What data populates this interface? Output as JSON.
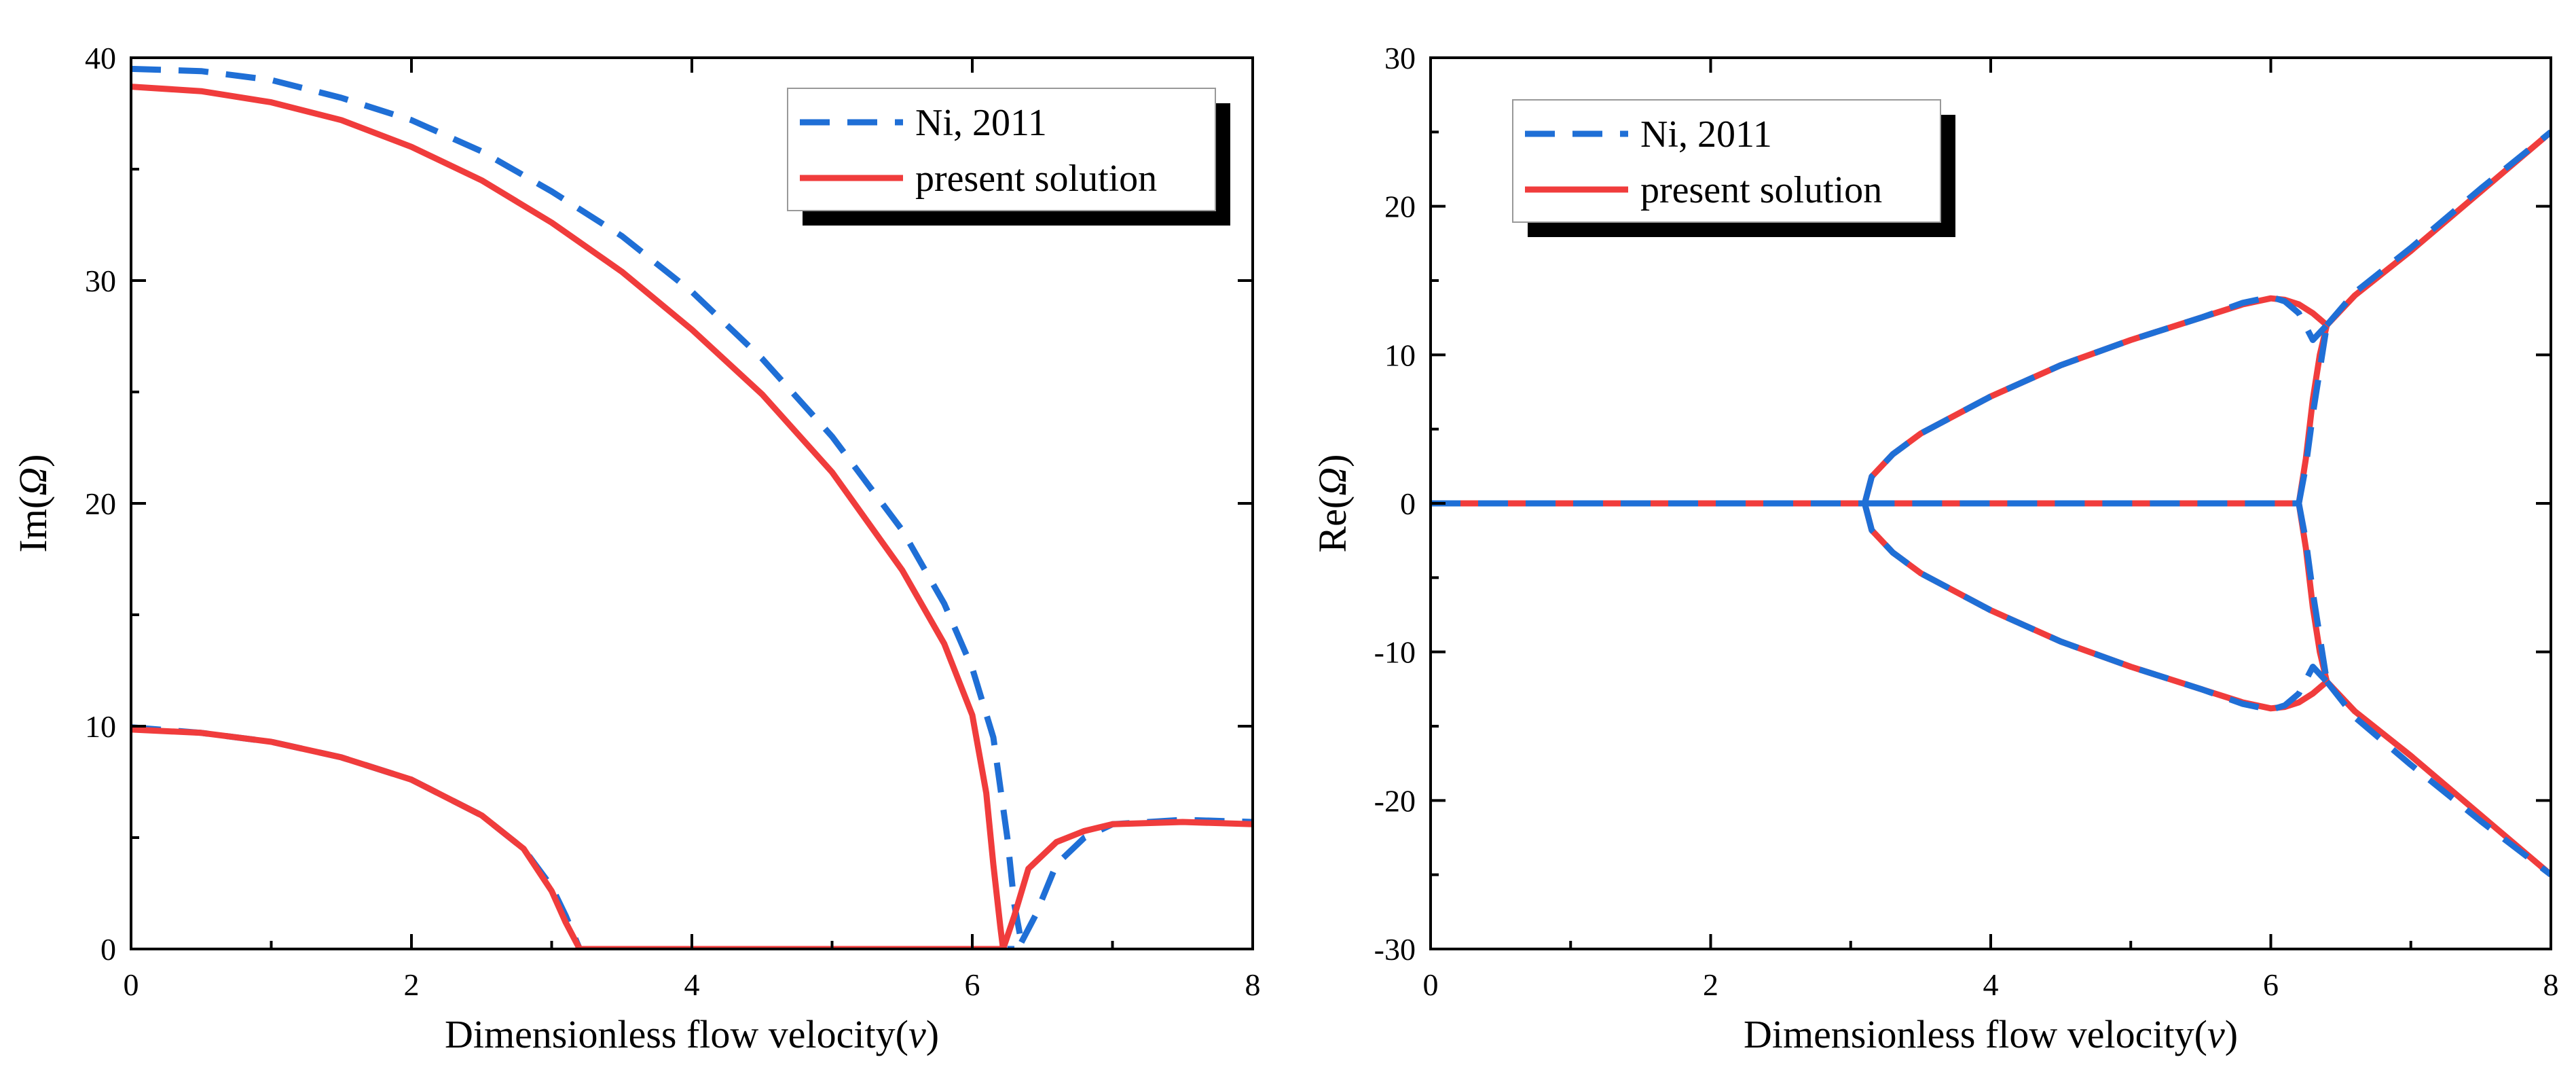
{
  "chart_data": [
    {
      "type": "line",
      "xlabel_prefix": "Dimensionless flow velocity(",
      "xlabel_var": "v",
      "xlabel_suffix": ")",
      "ylabel_prefix": "Im(",
      "ylabel_var": "Ω",
      "ylabel_suffix": ")",
      "xlim": [
        0,
        8
      ],
      "ylim": [
        0,
        40
      ],
      "xticks": [
        0,
        2,
        4,
        6,
        8
      ],
      "yticks": [
        0,
        10,
        20,
        30,
        40
      ],
      "xtick_labels": [
        "0",
        "2",
        "4",
        "6",
        "8"
      ],
      "ytick_labels": [
        "0",
        "10",
        "20",
        "30",
        "40"
      ],
      "legend_position": "top-right",
      "legend": [
        "Ni, 2011",
        "present solution"
      ],
      "series": [
        {
          "name": "Ni, 2011",
          "style": "dashed",
          "color": "#1f6fd6",
          "segments": [
            [
              [
                0,
                39.5
              ],
              [
                0.5,
                39.4
              ],
              [
                1,
                39.0
              ],
              [
                1.5,
                38.2
              ],
              [
                2,
                37.2
              ],
              [
                2.5,
                35.8
              ],
              [
                3,
                34.0
              ],
              [
                3.5,
                32.0
              ],
              [
                4,
                29.5
              ],
              [
                4.5,
                26.5
              ],
              [
                5,
                23.0
              ],
              [
                5.5,
                18.8
              ],
              [
                5.8,
                15.5
              ],
              [
                6.0,
                12.6
              ],
              [
                6.15,
                9.5
              ],
              [
                6.25,
                5.0
              ],
              [
                6.3,
                2.0
              ],
              [
                6.35,
                0.3
              ]
            ],
            [
              [
                6.35,
                0.3
              ],
              [
                6.45,
                1.5
              ],
              [
                6.6,
                3.8
              ],
              [
                6.8,
                5.0
              ],
              [
                7.0,
                5.6
              ],
              [
                7.5,
                5.8
              ],
              [
                8,
                5.7
              ]
            ],
            [
              [
                0,
                9.95
              ],
              [
                0.5,
                9.7
              ],
              [
                1,
                9.3
              ],
              [
                1.5,
                8.6
              ],
              [
                2,
                7.6
              ],
              [
                2.5,
                6.0
              ],
              [
                2.8,
                4.5
              ],
              [
                3.0,
                2.8
              ],
              [
                3.1,
                1.5
              ],
              [
                3.2,
                0
              ]
            ],
            [
              [
                3.2,
                0
              ],
              [
                6.3,
                0
              ]
            ]
          ]
        },
        {
          "name": "present solution",
          "style": "solid",
          "color": "#f03c3c",
          "segments": [
            [
              [
                0,
                38.7
              ],
              [
                0.5,
                38.5
              ],
              [
                1,
                38.0
              ],
              [
                1.5,
                37.2
              ],
              [
                2,
                36.0
              ],
              [
                2.5,
                34.5
              ],
              [
                3,
                32.6
              ],
              [
                3.5,
                30.4
              ],
              [
                4,
                27.8
              ],
              [
                4.5,
                24.9
              ],
              [
                5,
                21.4
              ],
              [
                5.5,
                17.0
              ],
              [
                5.8,
                13.7
              ],
              [
                6.0,
                10.5
              ],
              [
                6.1,
                7.0
              ],
              [
                6.15,
                3.8
              ],
              [
                6.2,
                1.0
              ],
              [
                6.22,
                0
              ]
            ],
            [
              [
                6.22,
                0
              ],
              [
                6.3,
                1.5
              ],
              [
                6.4,
                3.6
              ],
              [
                6.6,
                4.8
              ],
              [
                6.8,
                5.3
              ],
              [
                7.0,
                5.6
              ],
              [
                7.5,
                5.7
              ],
              [
                8,
                5.6
              ]
            ],
            [
              [
                0,
                9.85
              ],
              [
                0.5,
                9.7
              ],
              [
                1,
                9.3
              ],
              [
                1.5,
                8.6
              ],
              [
                2,
                7.6
              ],
              [
                2.5,
                6.0
              ],
              [
                2.8,
                4.5
              ],
              [
                3.0,
                2.6
              ],
              [
                3.1,
                1.2
              ],
              [
                3.2,
                0
              ]
            ],
            [
              [
                3.2,
                0
              ],
              [
                6.22,
                0
              ]
            ]
          ]
        }
      ]
    },
    {
      "type": "line",
      "xlabel_prefix": "Dimensionless flow velocity(",
      "xlabel_var": "v",
      "xlabel_suffix": ")",
      "ylabel_prefix": "Re(",
      "ylabel_var": "Ω",
      "ylabel_suffix": ")",
      "xlim": [
        0,
        8
      ],
      "ylim": [
        -30,
        30
      ],
      "xticks": [
        0,
        2,
        4,
        6,
        8
      ],
      "yticks": [
        -30,
        -20,
        -10,
        0,
        10,
        20,
        30
      ],
      "xtick_labels": [
        "0",
        "2",
        "4",
        "6",
        "8"
      ],
      "ytick_labels": [
        "-30",
        "-20",
        "-10",
        "0",
        "10",
        "20",
        "30"
      ],
      "legend_position": "top-left",
      "legend": [
        "Ni, 2011",
        "present solution"
      ],
      "series": [
        {
          "name": "present solution",
          "style": "solid",
          "color": "#f03c3c",
          "segments": [
            [
              [
                0,
                0
              ],
              [
                3.1,
                0
              ]
            ],
            [
              [
                3.1,
                0
              ],
              [
                6.2,
                0
              ]
            ],
            [
              [
                3.1,
                0
              ],
              [
                3.15,
                1.8
              ],
              [
                3.3,
                3.3
              ],
              [
                3.5,
                4.7
              ],
              [
                4,
                7.2
              ],
              [
                4.5,
                9.3
              ],
              [
                5,
                11.0
              ],
              [
                5.5,
                12.5
              ],
              [
                5.8,
                13.4
              ],
              [
                6.0,
                13.8
              ],
              [
                6.1,
                13.7
              ],
              [
                6.2,
                13.4
              ],
              [
                6.3,
                12.8
              ],
              [
                6.4,
                12.0
              ]
            ],
            [
              [
                3.1,
                0
              ],
              [
                3.15,
                -1.8
              ],
              [
                3.3,
                -3.3
              ],
              [
                3.5,
                -4.7
              ],
              [
                4,
                -7.2
              ],
              [
                4.5,
                -9.3
              ],
              [
                5,
                -11.0
              ],
              [
                5.5,
                -12.5
              ],
              [
                5.8,
                -13.4
              ],
              [
                6.0,
                -13.8
              ],
              [
                6.1,
                -13.7
              ],
              [
                6.2,
                -13.4
              ],
              [
                6.3,
                -12.8
              ],
              [
                6.4,
                -12.0
              ]
            ],
            [
              [
                6.2,
                0
              ],
              [
                6.25,
                3
              ],
              [
                6.3,
                7
              ],
              [
                6.35,
                10
              ],
              [
                6.4,
                12.0
              ]
            ],
            [
              [
                6.2,
                0
              ],
              [
                6.25,
                -3
              ],
              [
                6.3,
                -7
              ],
              [
                6.35,
                -10
              ],
              [
                6.4,
                -12.0
              ]
            ],
            [
              [
                6.4,
                12.0
              ],
              [
                6.6,
                14.0
              ],
              [
                7,
                17.0
              ],
              [
                7.5,
                21.0
              ],
              [
                8,
                25.0
              ]
            ],
            [
              [
                6.4,
                -12.0
              ],
              [
                6.6,
                -14.0
              ],
              [
                7,
                -17.0
              ],
              [
                7.5,
                -21.0
              ],
              [
                8,
                -25.0
              ]
            ]
          ]
        },
        {
          "name": "Ni, 2011",
          "style": "dashed",
          "color": "#1f6fd6",
          "segments": [
            [
              [
                0,
                0
              ],
              [
                3.1,
                0
              ]
            ],
            [
              [
                3.1,
                0
              ],
              [
                6.2,
                0
              ]
            ],
            [
              [
                3.1,
                0
              ],
              [
                3.15,
                1.8
              ],
              [
                3.3,
                3.3
              ],
              [
                3.5,
                4.7
              ],
              [
                4,
                7.2
              ],
              [
                4.5,
                9.3
              ],
              [
                5,
                11.0
              ],
              [
                5.5,
                12.5
              ],
              [
                5.8,
                13.5
              ],
              [
                6.0,
                13.9
              ],
              [
                6.1,
                13.6
              ],
              [
                6.2,
                12.8
              ],
              [
                6.3,
                11.0
              ],
              [
                6.35,
                11.5
              ],
              [
                6.4,
                12.0
              ]
            ],
            [
              [
                3.1,
                0
              ],
              [
                3.15,
                -1.8
              ],
              [
                3.3,
                -3.3
              ],
              [
                3.5,
                -4.7
              ],
              [
                4,
                -7.2
              ],
              [
                4.5,
                -9.3
              ],
              [
                5,
                -11.0
              ],
              [
                5.5,
                -12.5
              ],
              [
                5.8,
                -13.5
              ],
              [
                6.0,
                -13.9
              ],
              [
                6.1,
                -13.6
              ],
              [
                6.2,
                -12.8
              ],
              [
                6.3,
                -11.0
              ],
              [
                6.35,
                -11.5
              ],
              [
                6.4,
                -12.0
              ]
            ],
            [
              [
                6.2,
                0
              ],
              [
                6.25,
                2.5
              ],
              [
                6.3,
                6
              ],
              [
                6.35,
                9
              ],
              [
                6.4,
                12.0
              ]
            ],
            [
              [
                6.2,
                0
              ],
              [
                6.25,
                -2.5
              ],
              [
                6.3,
                -6
              ],
              [
                6.35,
                -9
              ],
              [
                6.4,
                -12.0
              ]
            ],
            [
              [
                6.4,
                12.0
              ],
              [
                6.6,
                14.2
              ],
              [
                7,
                17.2
              ],
              [
                7.5,
                21.2
              ],
              [
                8,
                25.0
              ]
            ],
            [
              [
                6.4,
                -12.0
              ],
              [
                6.6,
                -14.4
              ],
              [
                7,
                -17.6
              ],
              [
                7.5,
                -21.4
              ],
              [
                8,
                -25.0
              ]
            ]
          ]
        }
      ]
    }
  ]
}
